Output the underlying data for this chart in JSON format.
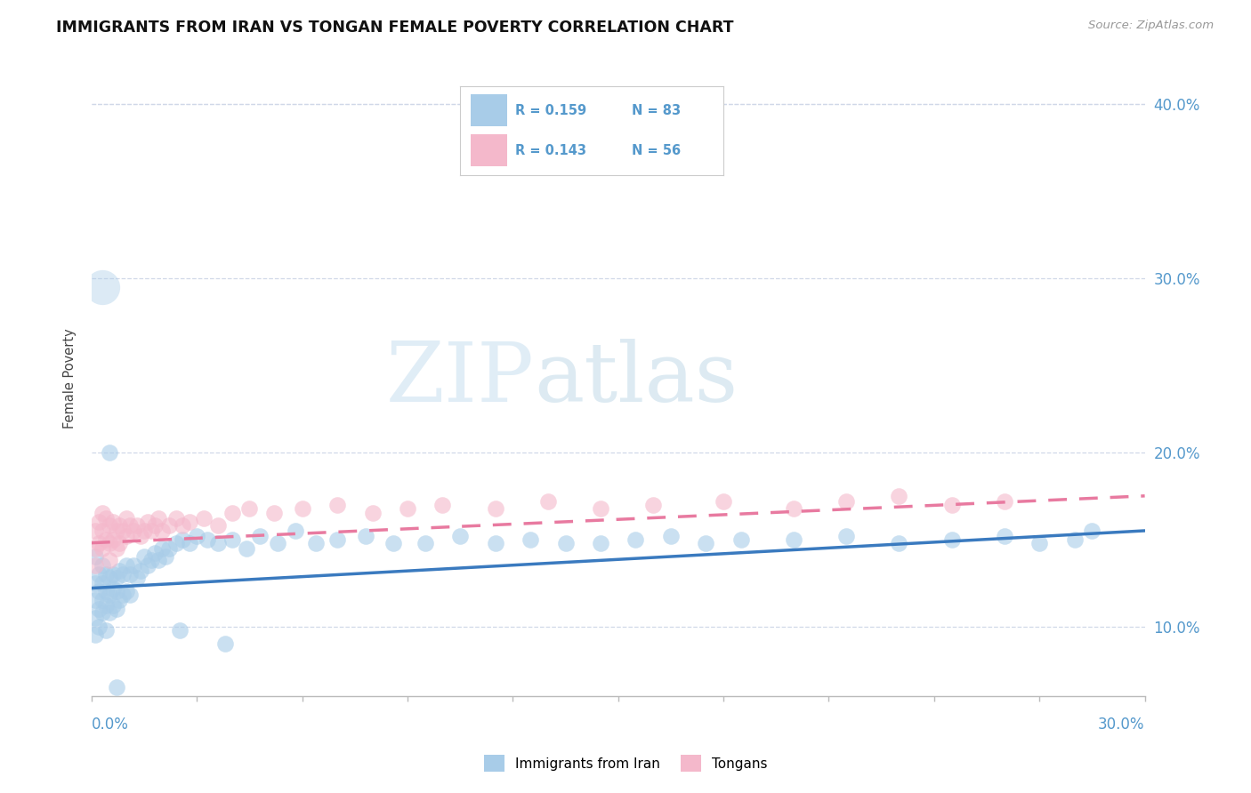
{
  "title": "IMMIGRANTS FROM IRAN VS TONGAN FEMALE POVERTY CORRELATION CHART",
  "source": "Source: ZipAtlas.com",
  "ylabel": "Female Poverty",
  "xmin": 0.0,
  "xmax": 0.3,
  "ymin": 0.06,
  "ymax": 0.425,
  "yticks": [
    0.1,
    0.2,
    0.3,
    0.4
  ],
  "ytick_labels": [
    "10.0%",
    "20.0%",
    "30.0%",
    "40.0%"
  ],
  "legend_r1": "R = 0.159",
  "legend_n1": "N = 83",
  "legend_r2": "R = 0.143",
  "legend_n2": "N = 56",
  "series1_color": "#a8cce8",
  "series2_color": "#f4b8cb",
  "trendline1_color": "#3a7abf",
  "trendline2_color": "#e87aa0",
  "watermark_color": "#daeef9",
  "grid_color": "#d0d8e8",
  "iran_trendline": [
    0.122,
    0.155
  ],
  "tongan_trendline": [
    0.148,
    0.175
  ],
  "iran_x": [
    0.001,
    0.001,
    0.001,
    0.001,
    0.001,
    0.002,
    0.002,
    0.002,
    0.002,
    0.003,
    0.003,
    0.003,
    0.003,
    0.004,
    0.004,
    0.004,
    0.004,
    0.005,
    0.005,
    0.005,
    0.006,
    0.006,
    0.006,
    0.007,
    0.007,
    0.007,
    0.008,
    0.008,
    0.009,
    0.009,
    0.01,
    0.01,
    0.011,
    0.011,
    0.012,
    0.013,
    0.014,
    0.015,
    0.016,
    0.017,
    0.018,
    0.019,
    0.02,
    0.021,
    0.022,
    0.024,
    0.026,
    0.028,
    0.03,
    0.033,
    0.036,
    0.04,
    0.044,
    0.048,
    0.053,
    0.058,
    0.064,
    0.07,
    0.078,
    0.086,
    0.095,
    0.105,
    0.115,
    0.125,
    0.135,
    0.145,
    0.155,
    0.165,
    0.175,
    0.185,
    0.2,
    0.215,
    0.23,
    0.245,
    0.26,
    0.27,
    0.28,
    0.285,
    0.025,
    0.038,
    0.003,
    0.005,
    0.007
  ],
  "iran_y": [
    0.125,
    0.14,
    0.115,
    0.105,
    0.095,
    0.13,
    0.12,
    0.11,
    0.1,
    0.135,
    0.125,
    0.115,
    0.108,
    0.13,
    0.12,
    0.112,
    0.098,
    0.128,
    0.118,
    0.108,
    0.13,
    0.122,
    0.112,
    0.128,
    0.12,
    0.11,
    0.132,
    0.115,
    0.13,
    0.118,
    0.135,
    0.12,
    0.13,
    0.118,
    0.135,
    0.128,
    0.132,
    0.14,
    0.135,
    0.138,
    0.142,
    0.138,
    0.145,
    0.14,
    0.145,
    0.148,
    0.15,
    0.148,
    0.152,
    0.15,
    0.148,
    0.15,
    0.145,
    0.152,
    0.148,
    0.155,
    0.148,
    0.15,
    0.152,
    0.148,
    0.148,
    0.152,
    0.148,
    0.15,
    0.148,
    0.148,
    0.15,
    0.152,
    0.148,
    0.15,
    0.15,
    0.152,
    0.148,
    0.15,
    0.152,
    0.148,
    0.15,
    0.155,
    0.098,
    0.09,
    0.295,
    0.2,
    0.065
  ],
  "iran_sizes": [
    40,
    40,
    40,
    40,
    40,
    40,
    40,
    40,
    40,
    40,
    40,
    40,
    40,
    40,
    40,
    40,
    40,
    40,
    40,
    40,
    40,
    40,
    40,
    40,
    40,
    40,
    40,
    40,
    40,
    40,
    40,
    40,
    40,
    40,
    40,
    40,
    40,
    40,
    40,
    40,
    40,
    40,
    40,
    40,
    40,
    40,
    40,
    40,
    40,
    40,
    40,
    40,
    40,
    40,
    40,
    40,
    40,
    40,
    40,
    40,
    40,
    40,
    40,
    40,
    40,
    40,
    40,
    40,
    40,
    40,
    40,
    40,
    40,
    40,
    40,
    40,
    40,
    40,
    40,
    40,
    400,
    40,
    40
  ],
  "tongan_x": [
    0.001,
    0.001,
    0.001,
    0.002,
    0.002,
    0.003,
    0.003,
    0.003,
    0.004,
    0.004,
    0.005,
    0.005,
    0.005,
    0.006,
    0.006,
    0.007,
    0.007,
    0.008,
    0.008,
    0.009,
    0.01,
    0.01,
    0.011,
    0.012,
    0.013,
    0.014,
    0.015,
    0.016,
    0.017,
    0.018,
    0.019,
    0.02,
    0.022,
    0.024,
    0.026,
    0.028,
    0.032,
    0.036,
    0.04,
    0.045,
    0.052,
    0.06,
    0.07,
    0.08,
    0.09,
    0.1,
    0.115,
    0.13,
    0.145,
    0.16,
    0.18,
    0.2,
    0.215,
    0.23,
    0.245,
    0.26
  ],
  "tongan_y": [
    0.155,
    0.145,
    0.135,
    0.16,
    0.148,
    0.165,
    0.155,
    0.145,
    0.162,
    0.15,
    0.158,
    0.148,
    0.138,
    0.16,
    0.15,
    0.155,
    0.145,
    0.158,
    0.148,
    0.155,
    0.162,
    0.152,
    0.158,
    0.155,
    0.158,
    0.152,
    0.155,
    0.16,
    0.155,
    0.158,
    0.162,
    0.155,
    0.158,
    0.162,
    0.158,
    0.16,
    0.162,
    0.158,
    0.165,
    0.168,
    0.165,
    0.168,
    0.17,
    0.165,
    0.168,
    0.17,
    0.168,
    0.172,
    0.168,
    0.17,
    0.172,
    0.168,
    0.172,
    0.175,
    0.17,
    0.172
  ],
  "tongan_sizes": [
    40,
    40,
    40,
    40,
    40,
    40,
    40,
    40,
    40,
    40,
    40,
    40,
    40,
    40,
    40,
    40,
    40,
    40,
    40,
    40,
    40,
    40,
    40,
    40,
    40,
    40,
    40,
    40,
    40,
    40,
    40,
    40,
    40,
    40,
    40,
    40,
    40,
    40,
    40,
    40,
    40,
    40,
    40,
    40,
    40,
    40,
    40,
    40,
    40,
    40,
    40,
    40,
    40,
    40,
    40,
    40
  ]
}
